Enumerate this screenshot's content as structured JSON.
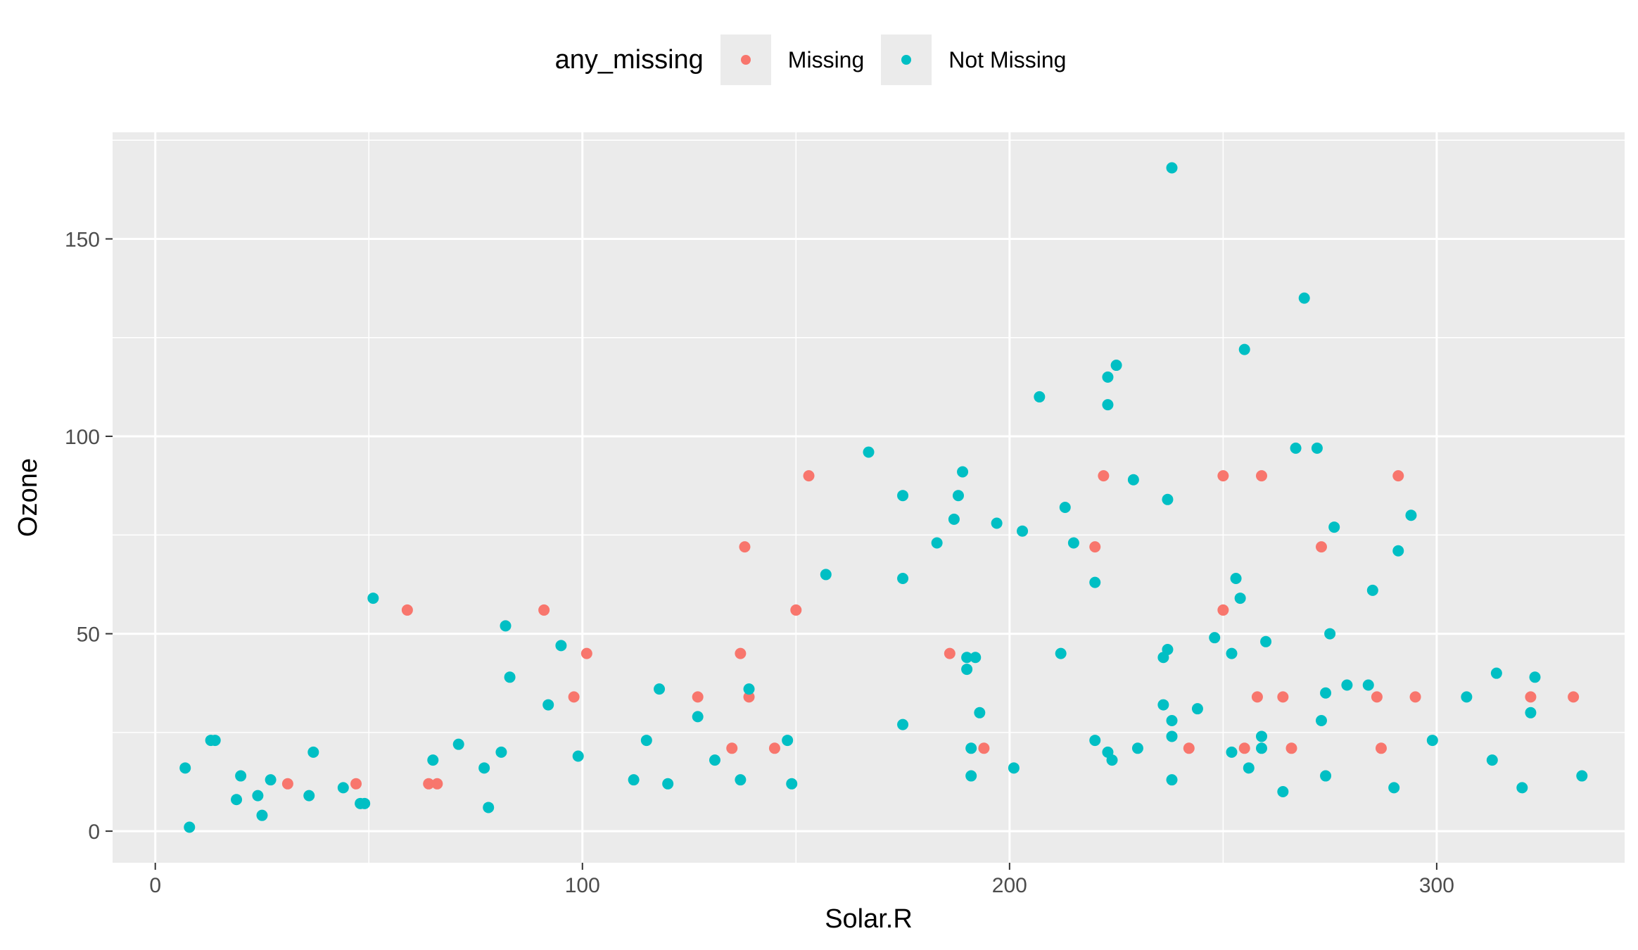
{
  "chart_data": {
    "type": "scatter",
    "title": "",
    "xlabel": "Solar.R",
    "ylabel": "Ozone",
    "xlim": [
      -10,
      344
    ],
    "ylim": [
      -8,
      177
    ],
    "xticks": [
      0,
      100,
      200,
      300
    ],
    "yticks": [
      0,
      50,
      100,
      150
    ],
    "grid": true,
    "legend": {
      "title": "any_missing",
      "position": "top"
    },
    "series": [
      {
        "name": "Missing",
        "color": "#F8766D",
        "points": [
          [
            31,
            12
          ],
          [
            47,
            12
          ],
          [
            59,
            56
          ],
          [
            64,
            12
          ],
          [
            66,
            12
          ],
          [
            91,
            56
          ],
          [
            98,
            34
          ],
          [
            101,
            45
          ],
          [
            127,
            34
          ],
          [
            135,
            21
          ],
          [
            137,
            45
          ],
          [
            138,
            72
          ],
          [
            139,
            34
          ],
          [
            145,
            21
          ],
          [
            150,
            56
          ],
          [
            153,
            90
          ],
          [
            186,
            45
          ],
          [
            194,
            21
          ],
          [
            220,
            72
          ],
          [
            222,
            90
          ],
          [
            242,
            21
          ],
          [
            250,
            56
          ],
          [
            250,
            90
          ],
          [
            255,
            21
          ],
          [
            258,
            34
          ],
          [
            259,
            90
          ],
          [
            264,
            34
          ],
          [
            266,
            21
          ],
          [
            273,
            72
          ],
          [
            286,
            34
          ],
          [
            287,
            21
          ],
          [
            291,
            90
          ],
          [
            295,
            34
          ],
          [
            322,
            34
          ],
          [
            332,
            34
          ]
        ]
      },
      {
        "name": "Not Missing",
        "color": "#00BFC4",
        "points": [
          [
            7,
            16
          ],
          [
            8,
            1
          ],
          [
            13,
            23
          ],
          [
            14,
            23
          ],
          [
            19,
            8
          ],
          [
            20,
            14
          ],
          [
            24,
            9
          ],
          [
            25,
            4
          ],
          [
            27,
            13
          ],
          [
            36,
            9
          ],
          [
            37,
            20
          ],
          [
            44,
            11
          ],
          [
            48,
            7
          ],
          [
            49,
            7
          ],
          [
            51,
            59
          ],
          [
            65,
            18
          ],
          [
            71,
            22
          ],
          [
            77,
            16
          ],
          [
            78,
            6
          ],
          [
            81,
            20
          ],
          [
            82,
            52
          ],
          [
            83,
            39
          ],
          [
            92,
            32
          ],
          [
            95,
            47
          ],
          [
            99,
            19
          ],
          [
            112,
            13
          ],
          [
            115,
            23
          ],
          [
            118,
            36
          ],
          [
            120,
            12
          ],
          [
            127,
            29
          ],
          [
            131,
            18
          ],
          [
            137,
            13
          ],
          [
            139,
            36
          ],
          [
            148,
            23
          ],
          [
            149,
            12
          ],
          [
            157,
            65
          ],
          [
            167,
            96
          ],
          [
            175,
            85
          ],
          [
            175,
            64
          ],
          [
            175,
            27
          ],
          [
            183,
            73
          ],
          [
            187,
            79
          ],
          [
            188,
            85
          ],
          [
            189,
            91
          ],
          [
            190,
            44
          ],
          [
            190,
            41
          ],
          [
            191,
            21
          ],
          [
            191,
            14
          ],
          [
            192,
            44
          ],
          [
            193,
            30
          ],
          [
            197,
            78
          ],
          [
            201,
            16
          ],
          [
            203,
            76
          ],
          [
            207,
            110
          ],
          [
            212,
            45
          ],
          [
            213,
            82
          ],
          [
            215,
            73
          ],
          [
            220,
            63
          ],
          [
            220,
            23
          ],
          [
            223,
            115
          ],
          [
            223,
            108
          ],
          [
            223,
            20
          ],
          [
            224,
            18
          ],
          [
            225,
            118
          ],
          [
            229,
            89
          ],
          [
            230,
            21
          ],
          [
            236,
            32
          ],
          [
            236,
            44
          ],
          [
            237,
            84
          ],
          [
            237,
            46
          ],
          [
            238,
            168
          ],
          [
            238,
            28
          ],
          [
            238,
            24
          ],
          [
            238,
            13
          ],
          [
            244,
            31
          ],
          [
            248,
            49
          ],
          [
            252,
            45
          ],
          [
            252,
            20
          ],
          [
            253,
            64
          ],
          [
            254,
            59
          ],
          [
            255,
            122
          ],
          [
            256,
            16
          ],
          [
            259,
            24
          ],
          [
            259,
            21
          ],
          [
            260,
            48
          ],
          [
            264,
            10
          ],
          [
            267,
            97
          ],
          [
            269,
            135
          ],
          [
            272,
            97
          ],
          [
            273,
            28
          ],
          [
            274,
            35
          ],
          [
            274,
            14
          ],
          [
            275,
            50
          ],
          [
            276,
            77
          ],
          [
            279,
            37
          ],
          [
            284,
            37
          ],
          [
            285,
            61
          ],
          [
            290,
            11
          ],
          [
            291,
            71
          ],
          [
            294,
            80
          ],
          [
            299,
            23
          ],
          [
            307,
            34
          ],
          [
            313,
            18
          ],
          [
            314,
            40
          ],
          [
            320,
            11
          ],
          [
            322,
            30
          ],
          [
            323,
            39
          ],
          [
            334,
            14
          ]
        ]
      }
    ]
  }
}
